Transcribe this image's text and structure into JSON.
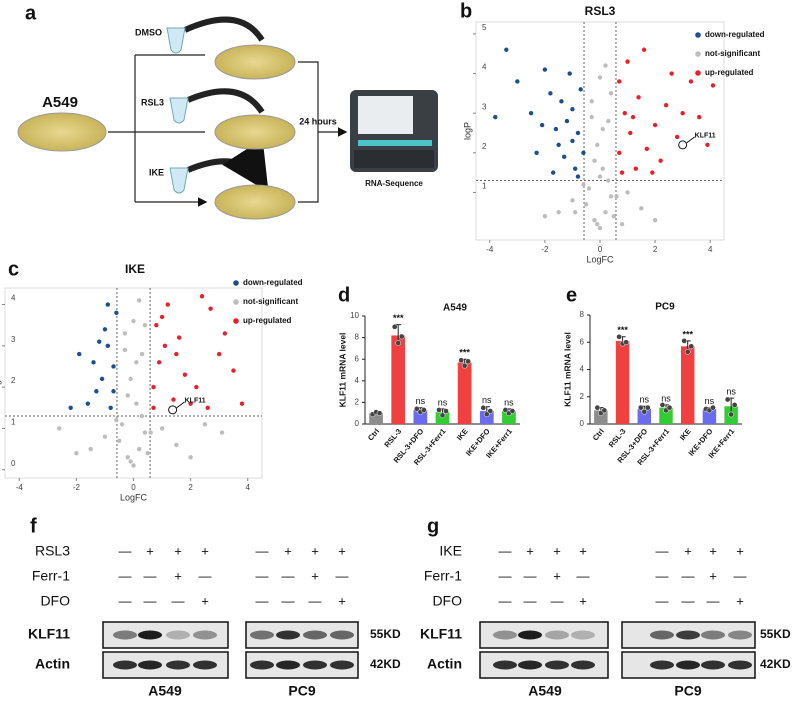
{
  "schematic": {
    "letter": "a",
    "cell_line": "A549",
    "treatments": [
      "DMSO",
      "RSL3",
      "IKE"
    ],
    "time": "24 hours",
    "assay": "RNA-Sequence"
  },
  "chart_data": [
    {
      "type": "scatter",
      "letter": "b",
      "title": "RSL3",
      "x_label": "LogFC",
      "y_label": "logP",
      "xlim": [
        -4.5,
        4.5
      ],
      "xticks": [
        -4,
        -2,
        0,
        2,
        4
      ],
      "ylim": [
        -0.2,
        5.3
      ],
      "yticks": [
        1,
        2,
        3,
        4,
        5
      ],
      "thresholds": {
        "x": [
          -0.58,
          0.58
        ],
        "y": 1.3
      },
      "legend": "upper right",
      "series": [
        {
          "name": "down-regulated",
          "color": "#1f4e8c",
          "x": [
            -0.8,
            -1.0,
            -1.2,
            -1.5,
            -1.8,
            -2.1,
            -2.5,
            -3.0,
            -3.4,
            -1.1,
            -0.9,
            -1.3,
            -0.7,
            -1.7,
            -2.3,
            -0.6,
            -1.0,
            -1.4,
            -2.0,
            -0.8,
            -3.8,
            -1.6
          ],
          "values": [
            2.5,
            3.1,
            2.8,
            2.2,
            3.5,
            2.7,
            3.0,
            3.8,
            4.6,
            4.0,
            1.6,
            1.9,
            3.6,
            1.5,
            2.0,
            2.0,
            2.3,
            3.3,
            4.1,
            1.4,
            2.9,
            2.6
          ]
        },
        {
          "name": "not-significant",
          "color": "#bdbdbd",
          "x": [
            0,
            -0.2,
            0.2,
            0.4,
            -0.4,
            0.1,
            -0.1,
            0.3,
            -0.3,
            0,
            0.5,
            -0.5,
            1.0,
            -1.0,
            1.5,
            -1.5,
            2.0,
            -2.0,
            0.2,
            -0.2,
            0.1,
            -0.1,
            0.3,
            0.6,
            -0.6,
            0.8,
            -0.9,
            0.4,
            -0.3,
            0
          ],
          "values": [
            0.1,
            0.3,
            0.5,
            0.9,
            1.1,
            1.6,
            2.2,
            2.8,
            3.3,
            3.9,
            0.4,
            0.7,
            1.0,
            0.8,
            0.6,
            0.5,
            0.3,
            0.4,
            4.2,
            1.8,
            2.6,
            0.2,
            1.3,
            0.9,
            1.2,
            0.2,
            0.5,
            3.5,
            2.9,
            1.4
          ]
        },
        {
          "name": "up-regulated",
          "color": "#e8202a",
          "x": [
            0.7,
            0.9,
            1.1,
            1.4,
            1.7,
            2.0,
            2.4,
            2.8,
            3.3,
            3.9,
            1.0,
            1.3,
            0.8,
            1.6,
            2.2,
            0.7,
            1.9,
            2.6,
            3.6,
            4.1,
            1.2,
            3.0
          ],
          "values": [
            2.0,
            3.0,
            2.5,
            3.4,
            2.1,
            2.7,
            3.2,
            2.4,
            3.8,
            2.2,
            4.3,
            1.6,
            1.5,
            4.6,
            1.8,
            3.8,
            1.5,
            4.0,
            2.9,
            3.7,
            2.9,
            3.0
          ]
        }
      ],
      "annotation": {
        "text": "KLF11",
        "x": 3.0,
        "y": 2.2
      }
    },
    {
      "type": "scatter",
      "letter": "c",
      "title": "IKE",
      "x_label": "LogFC",
      "y_label": "logP",
      "xlim": [
        -4.5,
        4.5
      ],
      "xticks": [
        -4,
        -2,
        0,
        2,
        4
      ],
      "ylim": [
        -0.2,
        4.4
      ],
      "yticks": [
        0,
        1,
        2,
        3,
        4
      ],
      "thresholds": {
        "x": [
          -0.58,
          0.58
        ],
        "y": 1.3
      },
      "legend": "upper right",
      "series": [
        {
          "name": "down-regulated",
          "color": "#1f4e8c",
          "x": [
            -0.7,
            -0.9,
            -1.1,
            -1.3,
            -1.6,
            -1.9,
            -0.8,
            -1.0,
            -0.6,
            -1.4,
            -2.2,
            -0.7,
            -1.2,
            -0.9
          ],
          "values": [
            2.5,
            3.0,
            2.2,
            1.9,
            1.6,
            2.8,
            1.5,
            3.4,
            3.8,
            2.6,
            1.5,
            1.9,
            3.1,
            4.0
          ]
        },
        {
          "name": "not-significant",
          "color": "#bdbdbd",
          "x": [
            0,
            -0.2,
            0.2,
            0.4,
            -0.4,
            0.1,
            -0.1,
            0.3,
            -0.3,
            0,
            0.5,
            -0.5,
            1.0,
            -1.0,
            1.5,
            -1.5,
            2.0,
            -2.0,
            0.2,
            -0.2,
            0.1,
            -0.1,
            0.3,
            0.6,
            -0.6,
            2.5,
            -2.6,
            0.4,
            -0.3,
            3.1
          ],
          "values": [
            0.1,
            0.3,
            0.5,
            0.9,
            1.1,
            1.6,
            2.2,
            2.8,
            3.3,
            3.6,
            0.4,
            0.7,
            1.0,
            0.8,
            0.6,
            0.5,
            0.3,
            0.4,
            4.1,
            1.8,
            2.6,
            0.2,
            1.3,
            0.9,
            1.2,
            1.1,
            1.0,
            3.5,
            2.9,
            0.9
          ]
        },
        {
          "name": "up-regulated",
          "color": "#e8202a",
          "x": [
            0.7,
            0.9,
            1.1,
            1.4,
            1.8,
            2.2,
            2.6,
            3.0,
            3.5,
            0.8,
            1.2,
            1.6,
            2.0,
            3.2,
            0.7,
            1.0,
            2.7,
            3.8,
            1.5,
            2.4
          ],
          "values": [
            2.0,
            2.6,
            3.0,
            1.7,
            2.3,
            2.0,
            1.5,
            2.8,
            2.4,
            3.5,
            4.0,
            3.2,
            1.6,
            3.3,
            1.5,
            3.7,
            3.9,
            1.6,
            2.8,
            4.2
          ]
        }
      ],
      "annotation": {
        "text": "KLF11",
        "x": 1.37,
        "y": 1.45
      }
    },
    {
      "type": "bar",
      "letter": "d",
      "title": "A549",
      "y_label": "KLF11 mRNA level",
      "categories": [
        "Ctrl",
        "RSL-3",
        "RSL-3+DFO",
        "RSL-3+Ferr1",
        "IKE",
        "IKE+DFO",
        "IKE+Ferr1"
      ],
      "values": [
        1.0,
        8.2,
        1.3,
        1.1,
        5.7,
        1.2,
        1.2
      ],
      "errors": [
        0.1,
        1.0,
        0.2,
        0.3,
        0.3,
        0.4,
        0.2
      ],
      "points": [
        [
          0.9,
          1.1,
          1.0
        ],
        [
          9.0,
          7.5,
          8.1
        ],
        [
          1.4,
          1.1,
          1.3
        ],
        [
          1.3,
          0.8,
          1.2
        ],
        [
          5.9,
          5.4,
          5.8
        ],
        [
          1.5,
          0.9,
          1.2
        ],
        [
          1.3,
          1.0,
          1.2
        ]
      ],
      "colors": [
        "#8c8c8c",
        "#f04040",
        "#6b6bf0",
        "#33cc33",
        "#f04040",
        "#6b6bf0",
        "#33cc33"
      ],
      "annotations": [
        null,
        "***",
        "ns",
        "ns",
        "***",
        "ns",
        "ns"
      ],
      "ylim": [
        0,
        10
      ],
      "yticks": [
        0,
        2,
        4,
        6,
        8,
        10
      ]
    },
    {
      "type": "bar",
      "letter": "e",
      "title": "PC9",
      "y_label": "KLF11 mRNA level",
      "categories": [
        "Ctrl",
        "RSL-3",
        "RSL-3+DFO",
        "RSL-3+Ferr1",
        "IKE",
        "IKE+DFO",
        "IKE+Ferr1"
      ],
      "values": [
        1.0,
        6.1,
        1.1,
        1.2,
        5.7,
        1.1,
        1.3
      ],
      "errors": [
        0.2,
        0.3,
        0.2,
        0.2,
        0.4,
        0.1,
        0.6
      ],
      "points": [
        [
          1.2,
          0.8,
          1.0
        ],
        [
          6.4,
          5.9,
          6.0
        ],
        [
          1.2,
          0.9,
          1.2
        ],
        [
          1.4,
          1.0,
          1.2
        ],
        [
          6.1,
          5.3,
          5.7
        ],
        [
          1.1,
          1.0,
          1.2
        ],
        [
          1.8,
          0.7,
          1.4
        ]
      ],
      "colors": [
        "#8c8c8c",
        "#f04040",
        "#6b6bf0",
        "#33cc33",
        "#f04040",
        "#6b6bf0",
        "#33cc33"
      ],
      "annotations": [
        null,
        "***",
        "ns",
        "ns",
        "***",
        "ns",
        "ns"
      ],
      "ylim": [
        0,
        8
      ],
      "yticks": [
        0,
        2,
        4,
        6,
        8
      ]
    }
  ],
  "blots": [
    {
      "letter": "f",
      "treatments": [
        {
          "name": "RSL3",
          "signs": [
            "—",
            "+",
            "+",
            "+",
            "—",
            "+",
            "+",
            "+"
          ]
        },
        {
          "name": "Ferr-1",
          "signs": [
            "—",
            "—",
            "+",
            "—",
            "—",
            "—",
            "+",
            "—"
          ]
        },
        {
          "name": "DFO",
          "signs": [
            "—",
            "—",
            "—",
            "+",
            "—",
            "—",
            "—",
            "+"
          ]
        }
      ],
      "proteins": [
        {
          "name": "KLF11",
          "size": "55KD"
        },
        {
          "name": "Actin",
          "size": "42KD"
        }
      ],
      "cell_lines": [
        "A549",
        "PC9"
      ]
    },
    {
      "letter": "g",
      "treatments": [
        {
          "name": "IKE",
          "signs": [
            "—",
            "+",
            "+",
            "+",
            "—",
            "+",
            "+",
            "+"
          ]
        },
        {
          "name": "Ferr-1",
          "signs": [
            "—",
            "—",
            "+",
            "—",
            "—",
            "—",
            "+",
            "—"
          ]
        },
        {
          "name": "DFO",
          "signs": [
            "—",
            "—",
            "—",
            "+",
            "—",
            "—",
            "—",
            "+"
          ]
        }
      ],
      "proteins": [
        {
          "name": "KLF11",
          "size": "55KD"
        },
        {
          "name": "Actin",
          "size": "42KD"
        }
      ],
      "cell_lines": [
        "A549",
        "PC9"
      ]
    }
  ]
}
